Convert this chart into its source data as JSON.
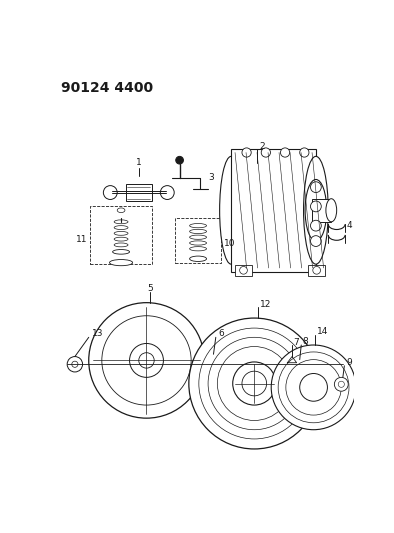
{
  "title": "90124 4400",
  "bg_color": "#ffffff",
  "line_color": "#1a1a1a",
  "title_fontsize": 10,
  "fig_width": 3.94,
  "fig_height": 5.33,
  "dpi": 100
}
